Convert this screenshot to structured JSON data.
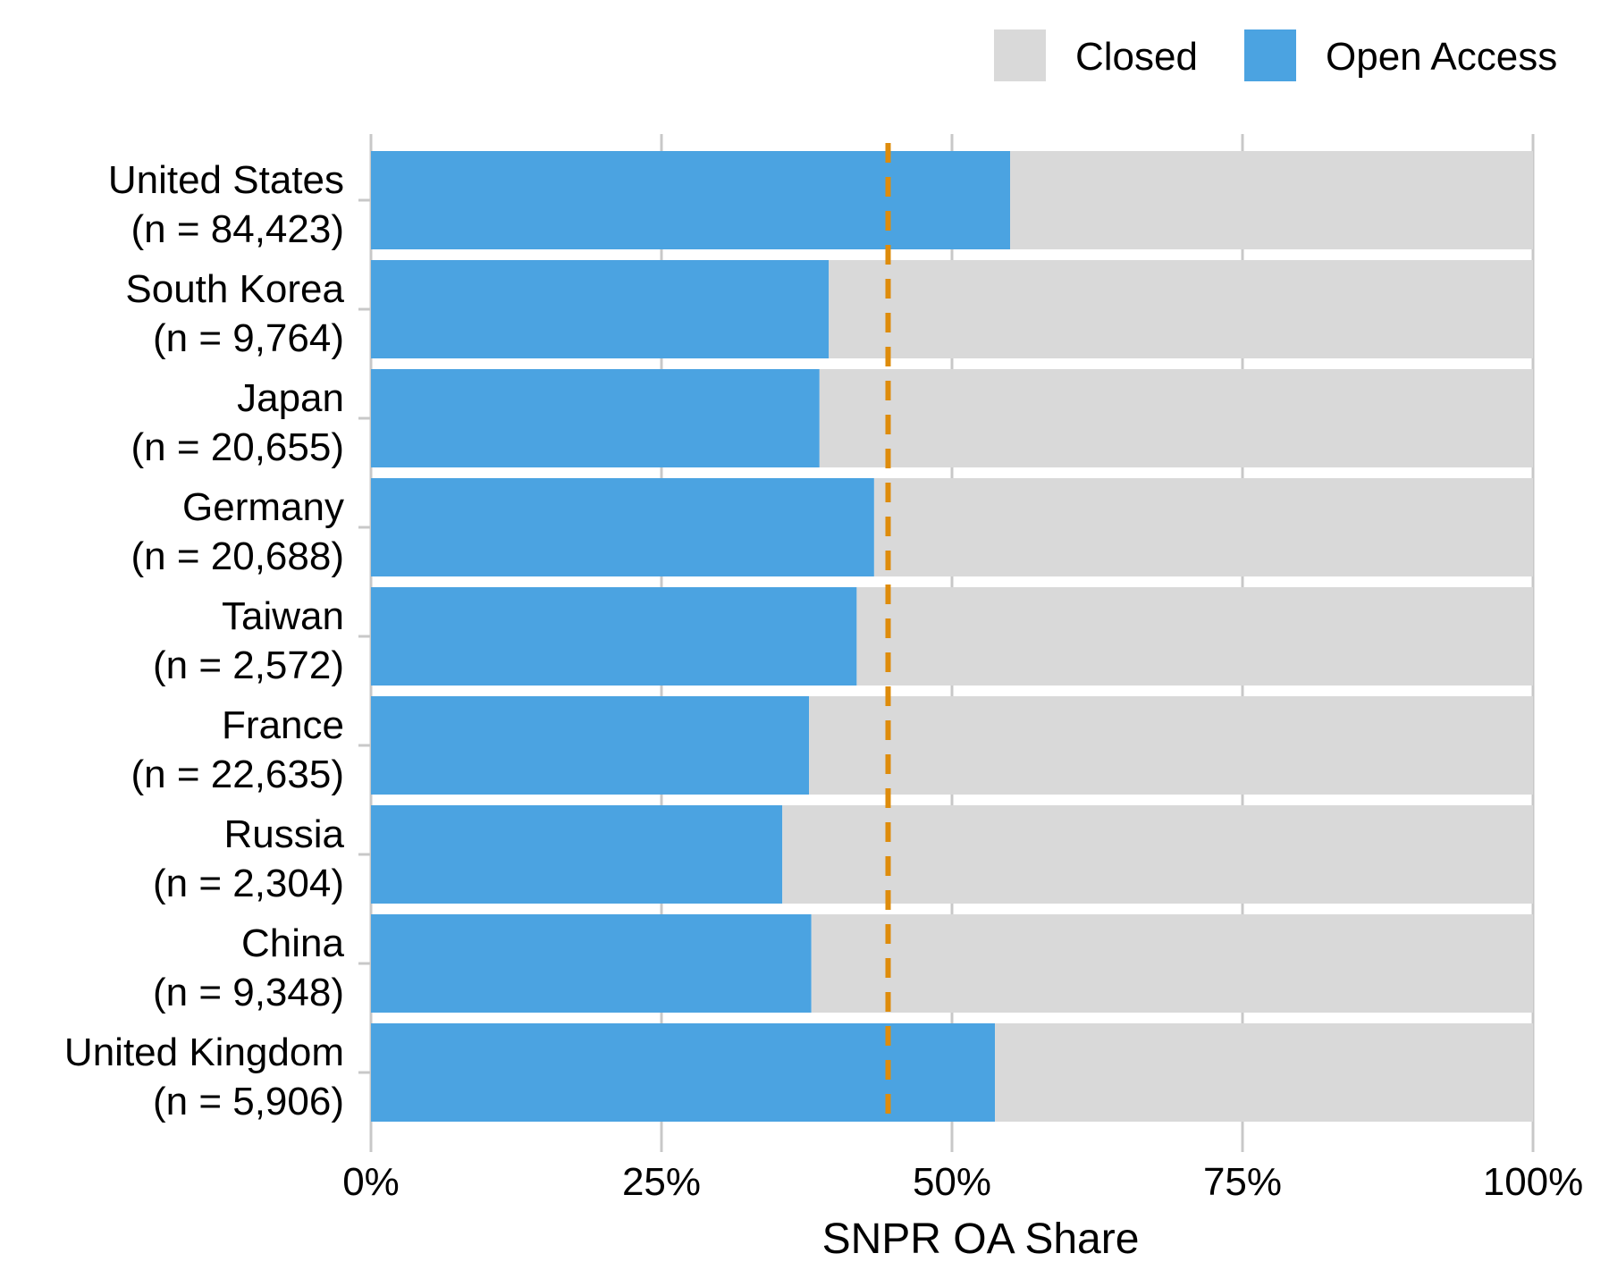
{
  "chart_data": {
    "type": "bar",
    "orientation": "horizontal",
    "stacked": true,
    "xlabel": "SNPR OA Share",
    "ylabel": "",
    "xlim": [
      0,
      100
    ],
    "x_ticks": [
      0,
      25,
      50,
      75,
      100
    ],
    "x_tick_labels": [
      "0%",
      "25%",
      "50%",
      "75%",
      "100%"
    ],
    "grid": "vertical",
    "legend_position": "top-right",
    "categories": [
      {
        "name": "United States",
        "n_label": "(n = 84,423)"
      },
      {
        "name": "South Korea",
        "n_label": "(n = 9,764)"
      },
      {
        "name": "Japan",
        "n_label": "(n = 20,655)"
      },
      {
        "name": "Germany",
        "n_label": "(n = 20,688)"
      },
      {
        "name": "Taiwan",
        "n_label": "(n = 2,572)"
      },
      {
        "name": "France",
        "n_label": "(n = 22,635)"
      },
      {
        "name": "Russia",
        "n_label": "(n = 2,304)"
      },
      {
        "name": "China",
        "n_label": "(n = 9,348)"
      },
      {
        "name": "United Kingdom",
        "n_label": "(n = 5,906)"
      }
    ],
    "series": [
      {
        "name": "Open Access",
        "color": "#4BA3E1",
        "values": [
          55.0,
          39.4,
          38.6,
          43.3,
          41.8,
          37.7,
          35.4,
          37.9,
          53.7
        ]
      },
      {
        "name": "Closed",
        "color": "#D9D9D9",
        "values": [
          45.0,
          60.6,
          61.4,
          56.7,
          58.2,
          62.3,
          64.6,
          62.1,
          46.3
        ]
      }
    ],
    "legend": [
      {
        "name": "Closed",
        "color": "#D9D9D9"
      },
      {
        "name": "Open Access",
        "color": "#4BA3E1"
      }
    ],
    "reference_line": {
      "value": 44.5,
      "color": "#DE8C0C",
      "style": "dashed"
    },
    "grid_color": "#C8C8C8"
  }
}
